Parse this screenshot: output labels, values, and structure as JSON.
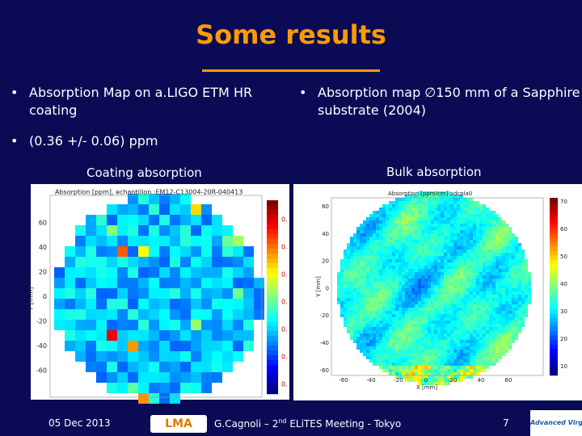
{
  "title": "Some results",
  "bullets": {
    "left": "Absorption Map on a.LIGO ETM HR coating",
    "right": "Absorption map ∅150 mm of a Sapphire substrate (2004)",
    "result": "(0.36 +/- 0.06) ppm"
  },
  "captions": {
    "left": "Coating absorption",
    "right": "Bulk absorption"
  },
  "coating_map": {
    "title": "Absorption [ppm], echantillon :EM12-C13004-20R-040413",
    "ylabel": "Y [mm]",
    "yticks": [
      "60",
      "40",
      "20",
      "0",
      "-20",
      "-40",
      "-60"
    ],
    "colorbar_labels": [
      "0.",
      "0.",
      "0.",
      "0.",
      "0.",
      "0.",
      "0."
    ]
  },
  "bulk_map": {
    "title": "Absorption [ppm/cm] adcpla0",
    "ylabel": "Y [mm]",
    "xlabel": "X [mm]",
    "yticks": [
      "60",
      "40",
      "20",
      "0",
      "-20",
      "-40",
      "-60"
    ],
    "xticks": [
      "-60",
      "-40",
      "-20",
      "0",
      "20",
      "40",
      "60"
    ],
    "colorbar_labels": [
      "70",
      "60",
      "50",
      "40",
      "30",
      "20",
      "10"
    ]
  },
  "footer": {
    "date": "05 Dec 2013",
    "author": "G.Cagnoli – 2",
    "superscript": "nd",
    "event": " ELiTES Meeting - Tokyo",
    "page": "7",
    "logo_left": "LMA",
    "logo_right": "Advanced Virgo"
  }
}
